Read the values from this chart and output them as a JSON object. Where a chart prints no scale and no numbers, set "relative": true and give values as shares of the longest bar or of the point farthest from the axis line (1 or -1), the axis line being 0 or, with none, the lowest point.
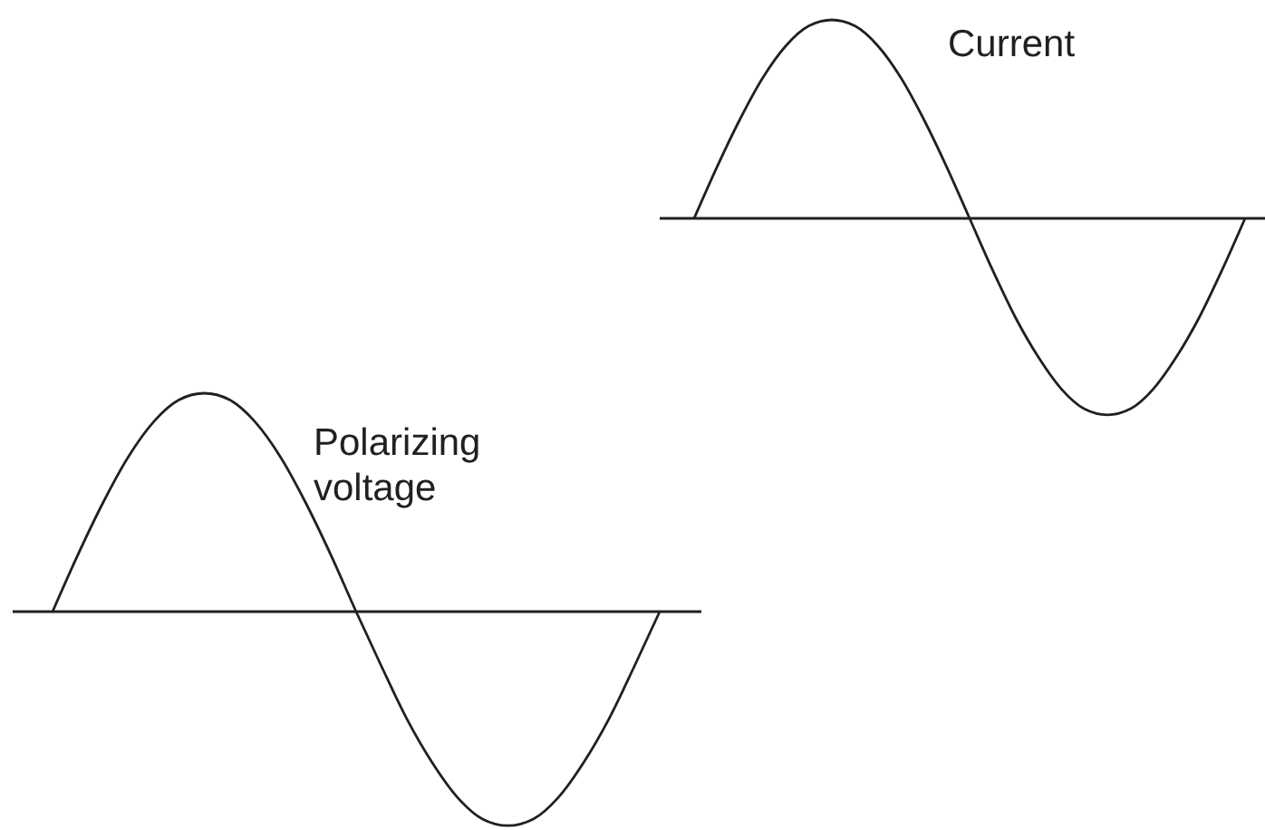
{
  "chart_data": [
    {
      "type": "line",
      "relative": true,
      "marker": "none",
      "categories": [
        null,
        null,
        null,
        null,
        null,
        null,
        null,
        null,
        null,
        null,
        null,
        null,
        null,
        null,
        null,
        null,
        null,
        null,
        null,
        null,
        null,
        null,
        null,
        null,
        null
      ],
      "series": [
        {
          "name": "Current",
          "color": "#231f20",
          "values": [
            0,
            0.26,
            0.5,
            0.71,
            0.87,
            0.97,
            1,
            0.97,
            0.87,
            0.71,
            0.5,
            0.26,
            0,
            -0.26,
            -0.5,
            -0.7,
            -0.86,
            -0.96,
            -0.99,
            -0.96,
            -0.86,
            -0.7,
            -0.5,
            -0.26,
            0
          ]
        }
      ]
    },
    {
      "type": "line",
      "relative": true,
      "marker": "none",
      "categories": [
        null,
        null,
        null,
        null,
        null,
        null,
        null,
        null,
        null,
        null,
        null,
        null,
        null,
        null,
        null,
        null,
        null,
        null,
        null,
        null,
        null,
        null,
        null,
        null,
        null
      ],
      "series": [
        {
          "name": "Polarizing voltage",
          "color": "#231f20",
          "values": [
            0,
            0.26,
            0.5,
            0.71,
            0.87,
            0.97,
            1,
            0.97,
            0.87,
            0.71,
            0.5,
            0.26,
            0,
            -0.25,
            -0.49,
            -0.69,
            -0.85,
            -0.95,
            -0.98,
            -0.95,
            -0.85,
            -0.69,
            -0.49,
            -0.25,
            0
          ]
        }
      ]
    }
  ]
}
